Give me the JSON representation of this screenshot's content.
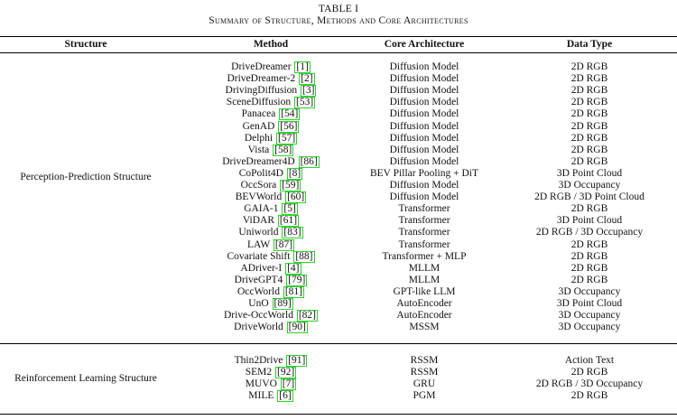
{
  "table": {
    "label": "TABLE I",
    "title": "Summary of Structure, Methods and Core Architectures",
    "headers": {
      "structure": "Structure",
      "method": "Method",
      "core_architecture": "Core Architecture",
      "data_type": "Data Type"
    },
    "sections": [
      {
        "structure": "Perception-Prediction Structure",
        "rows": [
          {
            "method": "DriveDreamer",
            "ref": "[1]",
            "arch": "Diffusion Model",
            "type": "2D RGB"
          },
          {
            "method": "DriveDreamer-2",
            "ref": "[2]",
            "arch": "Diffusion Model",
            "type": "2D RGB"
          },
          {
            "method": "DrivingDiffusion",
            "ref": "[3]",
            "arch": "Diffusion Model",
            "type": "2D RGB"
          },
          {
            "method": "SceneDiffusion",
            "ref": "[53]",
            "arch": "Diffusion Model",
            "type": "2D RGB"
          },
          {
            "method": "Panacea",
            "ref": "[54]",
            "arch": "Diffusion Model",
            "type": "2D RGB"
          },
          {
            "method": "GenAD",
            "ref": "[56]",
            "arch": "Diffusion Model",
            "type": "2D RGB"
          },
          {
            "method": "Delphi",
            "ref": "[57]",
            "arch": "Diffusion Model",
            "type": "2D RGB"
          },
          {
            "method": "Vista",
            "ref": "[58]",
            "arch": "Diffusion Model",
            "type": "2D RGB"
          },
          {
            "method": "DriveDreamer4D",
            "ref": "[86]",
            "arch": "Diffusion Model",
            "type": "2D RGB"
          },
          {
            "method": "CoPolit4D",
            "ref": "[8]",
            "arch": "BEV Pillar Pooling + DiT",
            "type": "3D Point Cloud"
          },
          {
            "method": "OccSora",
            "ref": "[59]",
            "arch": "Diffusion Model",
            "type": "3D Occupancy"
          },
          {
            "method": "BEVWorld",
            "ref": "[60]",
            "arch": "Diffusion Model",
            "type": "2D RGB / 3D Point Cloud"
          },
          {
            "method": "GAIA-1",
            "ref": "[5]",
            "arch": "Transformer",
            "type": "2D RGB"
          },
          {
            "method": "ViDAR",
            "ref": "[61]",
            "arch": "Transformer",
            "type": "3D Point Cloud"
          },
          {
            "method": "Uniworld",
            "ref": "[83]",
            "arch": "Transformer",
            "type": "2D RGB / 3D Occupancy"
          },
          {
            "method": "LAW",
            "ref": "[87]",
            "arch": "Transformer",
            "type": "2D RGB"
          },
          {
            "method": "Covariate Shift",
            "ref": "[88]",
            "arch": "Transformer + MLP",
            "type": "2D RGB"
          },
          {
            "method": "ADriver-I",
            "ref": "[4]",
            "arch": "MLLM",
            "type": "2D RGB"
          },
          {
            "method": "DriveGPT4",
            "ref": "[79]",
            "arch": "MLLM",
            "type": "2D RGB"
          },
          {
            "method": "OccWorld",
            "ref": "[81]",
            "arch": "GPT-like LLM",
            "type": "3D Occupancy"
          },
          {
            "method": "UnO",
            "ref": "[89]",
            "arch": "AutoEncoder",
            "type": "3D Point Cloud"
          },
          {
            "method": "Drive-OccWorld",
            "ref": "[82]",
            "arch": "AutoEncoder",
            "type": "3D Occupancy"
          },
          {
            "method": "DriveWorld",
            "ref": "[90]",
            "arch": "MSSM",
            "type": "3D Occupancy"
          }
        ]
      },
      {
        "structure": "Reinforcement Learning Structure",
        "rows": [
          {
            "method": "Thin2Drive",
            "ref": "[91]",
            "arch": "RSSM",
            "type": "Action Text"
          },
          {
            "method": "SEM2",
            "ref": "[92]",
            "arch": "RSSM",
            "type": "2D RGB"
          },
          {
            "method": "MUVO",
            "ref": "[7]",
            "arch": "GRU",
            "type": "2D RGB / 3D Occupancy"
          },
          {
            "method": "MILE",
            "ref": "[6]",
            "arch": "PGM",
            "type": "2D RGB"
          }
        ]
      }
    ]
  }
}
